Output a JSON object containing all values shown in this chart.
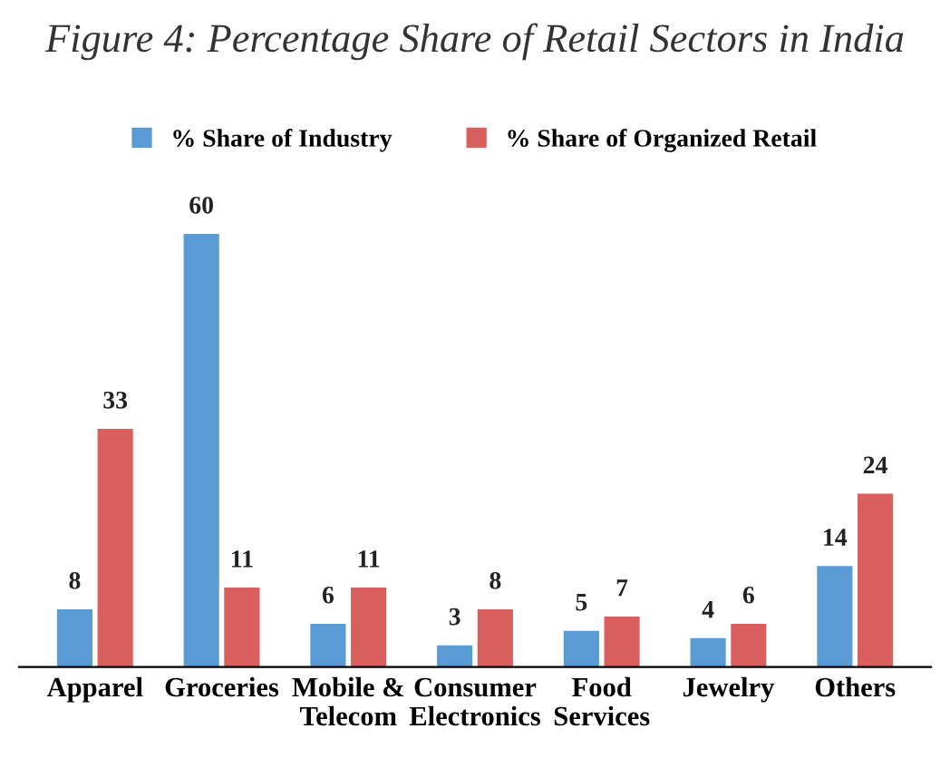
{
  "chart_data": {
    "type": "bar",
    "title": "Figure 4: Percentage Share of Retail Sectors in India",
    "categories": [
      "Apparel",
      "Groceries",
      "Mobile &\nTelecom",
      "Consumer\nElectronics",
      "Food\nServices",
      "Jewelry",
      "Others"
    ],
    "series": [
      {
        "name": "% Share of Industry",
        "color": "#5b9bd5",
        "values": [
          8,
          60,
          6,
          3,
          5,
          4,
          14
        ]
      },
      {
        "name": "% Share of Organized Retail",
        "color": "#d9605e",
        "values": [
          33,
          11,
          11,
          8,
          7,
          6,
          24
        ]
      }
    ],
    "data_labels": true,
    "legend": "top",
    "grid": false
  }
}
